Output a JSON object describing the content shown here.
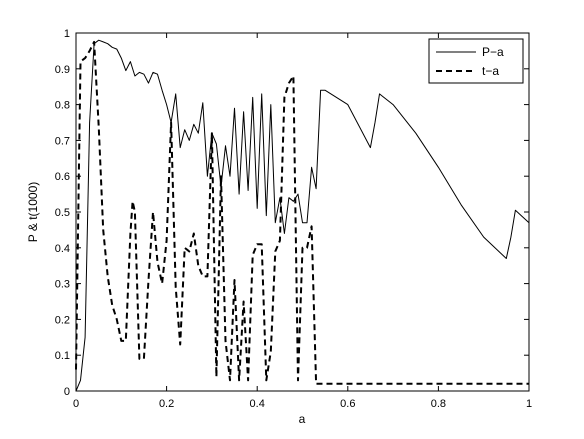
{
  "chart_data": {
    "type": "line",
    "xlabel": "a",
    "ylabel": "P & t(1000)",
    "xlim": [
      0,
      1
    ],
    "ylim": [
      0,
      1
    ],
    "xticks": [
      "0",
      "0.2",
      "0.4",
      "0.6",
      "0.8",
      "1"
    ],
    "xtick_values": [
      0,
      0.2,
      0.4,
      0.6,
      0.8,
      1
    ],
    "yticks": [
      "0",
      "0.1",
      "0.2",
      "0.3",
      "0.4",
      "0.5",
      "0.6",
      "0.7",
      "0.8",
      "0.9",
      "1"
    ],
    "ytick_values": [
      0,
      0.1,
      0.2,
      0.3,
      0.4,
      0.5,
      0.6,
      0.7,
      0.8,
      0.9,
      1
    ],
    "grid": false,
    "legend_position": "top-right",
    "series": [
      {
        "name": "P−a",
        "style": "solid",
        "color": "#000000",
        "x": [
          0,
          0.01,
          0.02,
          0.03,
          0.04,
          0.05,
          0.06,
          0.07,
          0.08,
          0.09,
          0.1,
          0.11,
          0.12,
          0.13,
          0.14,
          0.15,
          0.16,
          0.17,
          0.18,
          0.19,
          0.2,
          0.21,
          0.22,
          0.23,
          0.24,
          0.25,
          0.26,
          0.27,
          0.28,
          0.29,
          0.3,
          0.31,
          0.32,
          0.33,
          0.34,
          0.35,
          0.36,
          0.37,
          0.38,
          0.39,
          0.4,
          0.41,
          0.42,
          0.43,
          0.44,
          0.45,
          0.46,
          0.47,
          0.48,
          0.49,
          0.5,
          0.51,
          0.52,
          0.53,
          0.54,
          0.55,
          0.6,
          0.65,
          0.66,
          0.67,
          0.7,
          0.75,
          0.8,
          0.85,
          0.9,
          0.95,
          0.96,
          0.97,
          1.0
        ],
        "y": [
          0.0,
          0.03,
          0.15,
          0.75,
          0.97,
          0.98,
          0.975,
          0.97,
          0.96,
          0.955,
          0.93,
          0.895,
          0.92,
          0.88,
          0.89,
          0.885,
          0.86,
          0.89,
          0.885,
          0.84,
          0.8,
          0.75,
          0.83,
          0.68,
          0.73,
          0.7,
          0.745,
          0.72,
          0.805,
          0.6,
          0.72,
          0.69,
          0.57,
          0.685,
          0.6,
          0.79,
          0.55,
          0.78,
          0.56,
          0.82,
          0.51,
          0.83,
          0.49,
          0.8,
          0.47,
          0.54,
          0.44,
          0.54,
          0.53,
          0.55,
          0.47,
          0.47,
          0.625,
          0.565,
          0.84,
          0.84,
          0.8,
          0.68,
          0.75,
          0.83,
          0.8,
          0.72,
          0.625,
          0.52,
          0.43,
          0.37,
          0.43,
          0.505,
          0.47
        ]
      },
      {
        "name": "t−a",
        "style": "dashed",
        "color": "#000000",
        "x": [
          0,
          0.01,
          0.02,
          0.03,
          0.04,
          0.05,
          0.06,
          0.07,
          0.08,
          0.09,
          0.1,
          0.11,
          0.12,
          0.125,
          0.13,
          0.14,
          0.15,
          0.16,
          0.17,
          0.18,
          0.19,
          0.2,
          0.21,
          0.22,
          0.23,
          0.24,
          0.25,
          0.26,
          0.27,
          0.28,
          0.29,
          0.3,
          0.31,
          0.32,
          0.33,
          0.34,
          0.35,
          0.36,
          0.37,
          0.38,
          0.39,
          0.4,
          0.41,
          0.42,
          0.43,
          0.44,
          0.45,
          0.46,
          0.47,
          0.48,
          0.49,
          0.5,
          0.51,
          0.52,
          0.53,
          0.54,
          0.6,
          0.7,
          0.8,
          0.9,
          1.0
        ],
        "y": [
          0.06,
          0.92,
          0.93,
          0.95,
          0.975,
          0.74,
          0.45,
          0.32,
          0.24,
          0.2,
          0.14,
          0.14,
          0.44,
          0.53,
          0.5,
          0.09,
          0.09,
          0.31,
          0.5,
          0.36,
          0.3,
          0.42,
          0.75,
          0.29,
          0.13,
          0.4,
          0.39,
          0.44,
          0.35,
          0.32,
          0.32,
          0.72,
          0.04,
          0.6,
          0.14,
          0.03,
          0.31,
          0.03,
          0.25,
          0.03,
          0.38,
          0.41,
          0.41,
          0.03,
          0.11,
          0.39,
          0.42,
          0.82,
          0.86,
          0.88,
          0.03,
          0.4,
          0.4,
          0.46,
          0.02,
          0.02,
          0.02,
          0.02,
          0.02,
          0.02,
          0.02
        ]
      }
    ]
  }
}
